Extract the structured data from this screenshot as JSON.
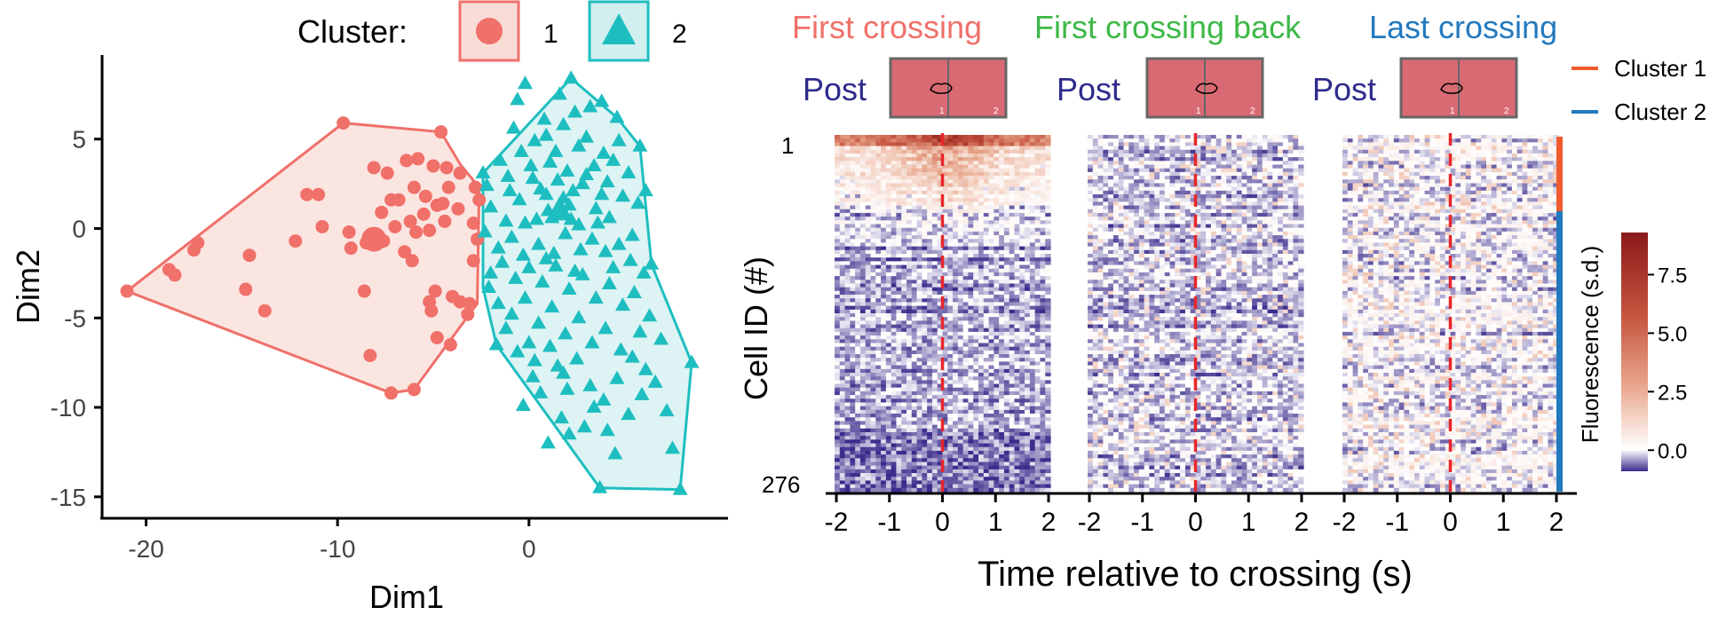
{
  "colors": {
    "cluster1": "#F0706A",
    "cluster1_fill": "#FADCD7",
    "cluster2": "#1EBEC0",
    "cluster2_fill": "#D2EFF0",
    "title_first": "#F0706A",
    "title_back": "#3DB847",
    "title_last": "#2279BE",
    "post_text": "#2E2B8C",
    "bar_cluster1": "#EF5B2E",
    "bar_cluster2": "#2279BE",
    "vline": "#E8262A",
    "heat_low": "#3B2C8C",
    "heat_mid": "#FFFFFF",
    "heat_high": "#8B1A1A",
    "box_fill": "#D96A73",
    "box_stroke": "#666666"
  },
  "scatter_panel": {
    "legend_title": "Cluster:",
    "legend_items": [
      {
        "label": "1",
        "shape": "circle"
      },
      {
        "label": "2",
        "shape": "triangle"
      }
    ]
  },
  "heatmap_panel": {
    "panel_titles": [
      "First crossing",
      "First crossing back",
      "Last crossing"
    ],
    "post_label": "Post",
    "box_labels": [
      "1",
      "2"
    ],
    "cluster_legend": [
      "Cluster 1",
      "Cluster 2"
    ],
    "y_top_label": "1",
    "y_bottom_label": "276",
    "ylabel": "Cell ID (#)",
    "xlabel": "Time relative to crossing (s)",
    "x_ticks": [
      "-2",
      "-1",
      "0",
      "1",
      "2"
    ],
    "colorbar_label": "Fluorescence (s.d.)",
    "colorbar_ticks": [
      "7.5",
      "5.0",
      "2.5",
      "0.0"
    ]
  },
  "chart_data": [
    {
      "type": "scatter",
      "xlabel": "Dim1",
      "ylabel": "Dim2",
      "xlim": [
        -22.3,
        10.4
      ],
      "ylim": [
        -16.2,
        9.7
      ],
      "x_ticks": [
        -20,
        -10,
        0
      ],
      "y_ticks": [
        5,
        0,
        -5,
        -10,
        -15
      ],
      "series": [
        {
          "name": "1",
          "points": [
            [
              -21,
              -3.5
            ],
            [
              -18.8,
              -2.3
            ],
            [
              -18.5,
              -2.6
            ],
            [
              -17.3,
              -0.8
            ],
            [
              -17.5,
              -1.2
            ],
            [
              -14.8,
              -3.4
            ],
            [
              -14.6,
              -1.5
            ],
            [
              -13.8,
              -4.6
            ],
            [
              -12.2,
              -0.7
            ],
            [
              -11.6,
              1.9
            ],
            [
              -11,
              1.9
            ],
            [
              -10.8,
              0.1
            ],
            [
              -9.7,
              5.9
            ],
            [
              -9.4,
              -0.2
            ],
            [
              -9.3,
              -1.1
            ],
            [
              -8.6,
              -3.5
            ],
            [
              -8.5,
              -0.8
            ],
            [
              -8.3,
              -7.1
            ],
            [
              -8.1,
              3.4
            ],
            [
              -7.7,
              0.9
            ],
            [
              -7.6,
              -0.7
            ],
            [
              -7.4,
              3.1
            ],
            [
              -7.2,
              -9.2
            ],
            [
              -7,
              0.1
            ],
            [
              -6.8,
              1.6
            ],
            [
              -6.5,
              -1.3
            ],
            [
              -6.4,
              3.8
            ],
            [
              -6.2,
              0.4
            ],
            [
              -6.1,
              -1.8
            ],
            [
              -6.0,
              2.3
            ],
            [
              -5.9,
              -0.2
            ],
            [
              -5.8,
              3.9
            ],
            [
              -5.5,
              0.8
            ],
            [
              -5.4,
              1.8
            ],
            [
              -5.2,
              -0.1
            ],
            [
              -5.2,
              -4.1
            ],
            [
              -5.1,
              -4.6
            ],
            [
              -5.0,
              3.5
            ],
            [
              -4.9,
              -3.5
            ],
            [
              -4.8,
              1.3
            ],
            [
              -4.8,
              -6.1
            ],
            [
              -4.5,
              1.4
            ],
            [
              -4.4,
              0.4
            ],
            [
              -4.3,
              3.4
            ],
            [
              -4.2,
              2.3
            ],
            [
              -4.1,
              -6.5
            ],
            [
              -4.0,
              -3.8
            ],
            [
              -3.7,
              1.1
            ],
            [
              -3.6,
              3.1
            ],
            [
              -3.6,
              -4.1
            ],
            [
              -3.2,
              -4.8
            ],
            [
              -3.1,
              -4.2
            ],
            [
              -2.9,
              -1.8
            ],
            [
              -2.6,
              1.6
            ],
            [
              -7.2,
              1.6
            ],
            [
              -6.0,
              -9.0
            ],
            [
              -4.6,
              5.4
            ],
            [
              -2.8,
              2.3
            ],
            [
              -2.7,
              -0.6
            ],
            [
              -2.9,
              0.3
            ]
          ],
          "centroid": [
            -8.1,
            -0.6
          ],
          "hull": [
            [
              -21,
              -3.5
            ],
            [
              -9.7,
              5.9
            ],
            [
              -4.6,
              5.4
            ],
            [
              -3.6,
              3.6
            ],
            [
              -2.6,
              2.3
            ],
            [
              -2.7,
              -4.2
            ],
            [
              -3.6,
              -5.5
            ],
            [
              -6.0,
              -9.0
            ],
            [
              -7.2,
              -9.2
            ]
          ]
        },
        {
          "name": "2",
          "points": [
            [
              2.2,
              8.4
            ],
            [
              3.8,
              7.1
            ],
            [
              1.6,
              7.5
            ],
            [
              -0.2,
              8.1
            ],
            [
              4.6,
              6.2
            ],
            [
              3.2,
              6.8
            ],
            [
              5.8,
              4.6
            ],
            [
              0.8,
              6.1
            ],
            [
              -0.6,
              7.2
            ],
            [
              -2.2,
              2.4
            ],
            [
              -1.5,
              3.8
            ],
            [
              -1.0,
              2.1
            ],
            [
              -0.4,
              4.3
            ],
            [
              0.3,
              4.9
            ],
            [
              1.1,
              3.7
            ],
            [
              1.8,
              5.8
            ],
            [
              2.6,
              4.6
            ],
            [
              3.4,
              3.5
            ],
            [
              4.1,
              2.6
            ],
            [
              4.7,
              4.9
            ],
            [
              5.2,
              3.1
            ],
            [
              5.7,
              1.4
            ],
            [
              6.1,
              2.1
            ],
            [
              -2.0,
              1.2
            ],
            [
              -1.2,
              0.4
            ],
            [
              -0.5,
              1.6
            ],
            [
              0.2,
              2.8
            ],
            [
              0.9,
              1.9
            ],
            [
              1.5,
              2.7
            ],
            [
              2.1,
              1.3
            ],
            [
              2.8,
              2.5
            ],
            [
              3.5,
              1.1
            ],
            [
              4.2,
              0.6
            ],
            [
              4.9,
              1.8
            ],
            [
              5.4,
              -0.4
            ],
            [
              -2.3,
              -0.2
            ],
            [
              -1.6,
              -1.1
            ],
            [
              -0.9,
              -0.5
            ],
            [
              -0.2,
              0.3
            ],
            [
              0.5,
              -0.9
            ],
            [
              1.2,
              0.6
            ],
            [
              1.9,
              -0.3
            ],
            [
              2.6,
              0.2
            ],
            [
              3.3,
              -0.6
            ],
            [
              4.0,
              -1.3
            ],
            [
              4.7,
              -0.9
            ],
            [
              5.3,
              -1.8
            ],
            [
              6.0,
              -2.5
            ],
            [
              6.4,
              -2.0
            ],
            [
              -2.0,
              -2.5
            ],
            [
              -1.4,
              -1.9
            ],
            [
              -0.7,
              -2.8
            ],
            [
              0.0,
              -2.2
            ],
            [
              0.7,
              -3.0
            ],
            [
              1.4,
              -2.1
            ],
            [
              2.1,
              -3.4
            ],
            [
              2.8,
              -2.6
            ],
            [
              3.5,
              -3.9
            ],
            [
              4.2,
              -3.1
            ],
            [
              4.9,
              -4.3
            ],
            [
              5.5,
              -3.6
            ],
            [
              6.3,
              -4.9
            ],
            [
              -1.6,
              -4.2
            ],
            [
              -0.9,
              -4.8
            ],
            [
              -0.2,
              -3.9
            ],
            [
              0.5,
              -5.3
            ],
            [
              1.2,
              -4.4
            ],
            [
              1.9,
              -5.9
            ],
            [
              2.6,
              -5.0
            ],
            [
              3.3,
              -6.4
            ],
            [
              4.0,
              -5.6
            ],
            [
              4.8,
              -6.8
            ],
            [
              5.4,
              -7.2
            ],
            [
              6.1,
              -7.9
            ],
            [
              6.6,
              -8.6
            ],
            [
              -0.6,
              -6.9
            ],
            [
              0.3,
              -7.4
            ],
            [
              1.1,
              -6.6
            ],
            [
              1.8,
              -8.1
            ],
            [
              2.5,
              -7.3
            ],
            [
              3.2,
              -8.8
            ],
            [
              3.9,
              -9.6
            ],
            [
              4.6,
              -8.4
            ],
            [
              5.2,
              -10.4
            ],
            [
              -0.3,
              -9.9
            ],
            [
              0.6,
              -9.2
            ],
            [
              1.7,
              -10.6
            ],
            [
              2.9,
              -11.1
            ],
            [
              4.5,
              -12.6
            ],
            [
              7.2,
              -10.2
            ],
            [
              7.5,
              -12.3
            ],
            [
              8.5,
              -7.5
            ],
            [
              3.7,
              -14.5
            ],
            [
              7.9,
              -14.6
            ],
            [
              -2.4,
              3.1
            ],
            [
              -0.8,
              5.6
            ],
            [
              0.9,
              5.2
            ],
            [
              2.4,
              6.5
            ],
            [
              3.0,
              5.1
            ],
            [
              3.9,
              4.2
            ],
            [
              1.0,
              1.0
            ],
            [
              1.6,
              0.9
            ],
            [
              2.3,
              2.1
            ],
            [
              0.4,
              0.5
            ],
            [
              1.3,
              -1.4
            ],
            [
              2.7,
              -1.2
            ],
            [
              3.8,
              1.9
            ],
            [
              0.1,
              3.5
            ],
            [
              1.4,
              4.3
            ],
            [
              2.0,
              3.2
            ],
            [
              3.0,
              3.0
            ],
            [
              4.4,
              3.8
            ],
            [
              -1.1,
              2.9
            ],
            [
              0.6,
              2.2
            ],
            [
              1.8,
              1.7
            ],
            [
              2.2,
              0.5
            ],
            [
              3.6,
              0.3
            ],
            [
              -0.3,
              -1.5
            ],
            [
              0.9,
              -1.7
            ],
            [
              2.4,
              -2.4
            ],
            [
              4.4,
              -2.2
            ],
            [
              5.8,
              -5.8
            ],
            [
              6.9,
              -6.2
            ],
            [
              -1.2,
              -5.6
            ],
            [
              0.0,
              -6.4
            ],
            [
              1.5,
              -7.7
            ],
            [
              2.0,
              -9.0
            ],
            [
              3.4,
              -10.0
            ],
            [
              -2.1,
              -3.3
            ],
            [
              -1.7,
              -6.5
            ],
            [
              0.2,
              -8.3
            ],
            [
              1.0,
              -12.0
            ],
            [
              2.1,
              -11.5
            ],
            [
              4.1,
              -11.3
            ],
            [
              5.9,
              -9.3
            ]
          ],
          "centroid": [
            1.6,
            1.0
          ],
          "hull": [
            [
              -2.4,
              3.1
            ],
            [
              2.2,
              8.4
            ],
            [
              4.6,
              6.2
            ],
            [
              5.8,
              4.6
            ],
            [
              6.4,
              -2.0
            ],
            [
              8.5,
              -7.5
            ],
            [
              7.9,
              -14.6
            ],
            [
              3.7,
              -14.5
            ],
            [
              -1.7,
              -6.5
            ],
            [
              -2.4,
              -3.3
            ]
          ]
        }
      ]
    },
    {
      "type": "heatmap",
      "title": "First crossing",
      "x_range": [
        -2,
        2
      ],
      "rows": 276,
      "cluster_split_row": 60,
      "value_range": [
        -0.9,
        9.3
      ],
      "pattern": "top rows warm near onset, lower rows cold"
    },
    {
      "type": "heatmap",
      "title": "First crossing back",
      "x_range": [
        -2,
        2
      ],
      "rows": 276,
      "cluster_split_row": 60,
      "value_range": [
        -0.9,
        9.3
      ],
      "pattern": "mostly cold with scattered warm cells"
    },
    {
      "type": "heatmap",
      "title": "Last crossing",
      "x_range": [
        -2,
        2
      ],
      "rows": 276,
      "cluster_split_row": 60,
      "value_range": [
        -0.9,
        9.3
      ],
      "pattern": "mixed warm and cold cells throughout"
    }
  ]
}
